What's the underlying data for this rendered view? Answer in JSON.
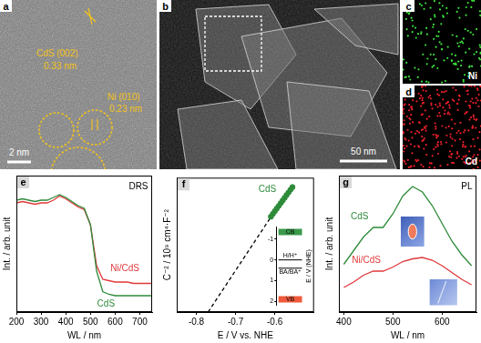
{
  "image_panels": [
    {
      "panel": "a",
      "texts": [
        "CdS (002)",
        "0.33 nm",
        "Ni (010)",
        "0.23 nm"
      ],
      "scale_bar": "2 nm"
    },
    {
      "panel": "b",
      "scale_bar": "50 nm"
    },
    {
      "panel": "c",
      "label": "Ni",
      "color": "#3ddc3d"
    },
    {
      "panel": "d",
      "label": "Cd",
      "color": "#e8202a"
    }
  ],
  "chart_data": [
    {
      "panel": "e",
      "type": "line",
      "annotations": [
        "DRS"
      ],
      "xlabel": "WL / nm",
      "ylabel": "Int. / arb. unit",
      "x": [
        200,
        225,
        250,
        275,
        300,
        325,
        350,
        375,
        400,
        425,
        450,
        475,
        500,
        525,
        550,
        575,
        600,
        625,
        650,
        675,
        700,
        725,
        750
      ],
      "series": [
        {
          "name": "CdS",
          "color": "#2e8b3a",
          "values": [
            0.82,
            0.83,
            0.82,
            0.81,
            0.82,
            0.82,
            0.84,
            0.86,
            0.84,
            0.81,
            0.78,
            0.76,
            0.64,
            0.3,
            0.15,
            0.13,
            0.12,
            0.12,
            0.12,
            0.12,
            0.12,
            0.12,
            0.12
          ]
        },
        {
          "name": "Ni/CdS",
          "color": "#e0383a",
          "values": [
            0.8,
            0.81,
            0.8,
            0.79,
            0.8,
            0.8,
            0.82,
            0.85,
            0.83,
            0.8,
            0.77,
            0.75,
            0.64,
            0.34,
            0.24,
            0.23,
            0.22,
            0.22,
            0.22,
            0.21,
            0.21,
            0.21,
            0.21
          ]
        }
      ],
      "xlim": [
        200,
        750
      ],
      "xticks": [
        200,
        300,
        400,
        500,
        600,
        700
      ],
      "ylim": [
        0,
        1
      ],
      "tick_labels": "x",
      "grid": false
    },
    {
      "panel": "f",
      "type": "scatter",
      "xlabel": "E / V vs. NHE",
      "ylabel": "C⁻² / 10⁹ cm⁴·F⁻²",
      "series": [
        {
          "name": "CdS",
          "color": "#2e8b3a",
          "marker": "circle",
          "line_style": "none",
          "x": [
            -0.61,
            -0.605,
            -0.6,
            -0.595,
            -0.59,
            -0.585,
            -0.58,
            -0.575,
            -0.57,
            -0.565,
            -0.56,
            -0.555
          ],
          "values": [
            0.71,
            0.73,
            0.75,
            0.77,
            0.79,
            0.81,
            0.83,
            0.85,
            0.87,
            0.89,
            0.91,
            0.93
          ]
        },
        {
          "color": "#000000",
          "marker": "none",
          "line_style": "dashed",
          "x": [
            -0.77,
            -0.555
          ],
          "values": [
            0,
            0.95
          ]
        }
      ],
      "xlim": [
        -0.85,
        -0.5
      ],
      "xticks": [
        -0.8,
        -0.7,
        -0.6
      ],
      "ylim": [
        0,
        1
      ],
      "tick_labels": "x",
      "grid": false,
      "inset": {
        "type": "energy_levels",
        "ylabel": "E / V (NHE)",
        "ylim": [
          -1.6,
          2.2
        ],
        "yticks": [
          -1,
          0,
          1,
          2
        ],
        "levels": [
          {
            "name": "CB",
            "value": -1.35,
            "color": "#3a9a4a"
          },
          {
            "name": "H/H⁺",
            "value": 0
          },
          {
            "name": "BA/BA⁺",
            "value": 0.4
          },
          {
            "name": "VB",
            "value": 1.9,
            "color": "#f05a3c"
          }
        ]
      }
    },
    {
      "panel": "g",
      "type": "line",
      "annotations": [
        "PL"
      ],
      "xlabel": "WL / nm",
      "ylabel": "Int. / arb. unit",
      "x": [
        400,
        420,
        440,
        460,
        480,
        500,
        520,
        540,
        560,
        580,
        600,
        620,
        640,
        660
      ],
      "series": [
        {
          "name": "CdS",
          "color": "#2e8b3a",
          "values": [
            0.35,
            0.45,
            0.55,
            0.62,
            0.62,
            0.72,
            0.85,
            0.92,
            0.88,
            0.78,
            0.65,
            0.52,
            0.42,
            0.34
          ]
        },
        {
          "name": "Ni/CdS",
          "color": "#e0383a",
          "values": [
            0.18,
            0.22,
            0.27,
            0.3,
            0.3,
            0.33,
            0.37,
            0.39,
            0.4,
            0.38,
            0.34,
            0.29,
            0.24,
            0.2
          ]
        }
      ],
      "xlim": [
        390,
        670
      ],
      "xticks": [
        400,
        500,
        600
      ],
      "ylim": [
        0,
        1
      ],
      "tick_labels": "x",
      "grid": false
    }
  ]
}
